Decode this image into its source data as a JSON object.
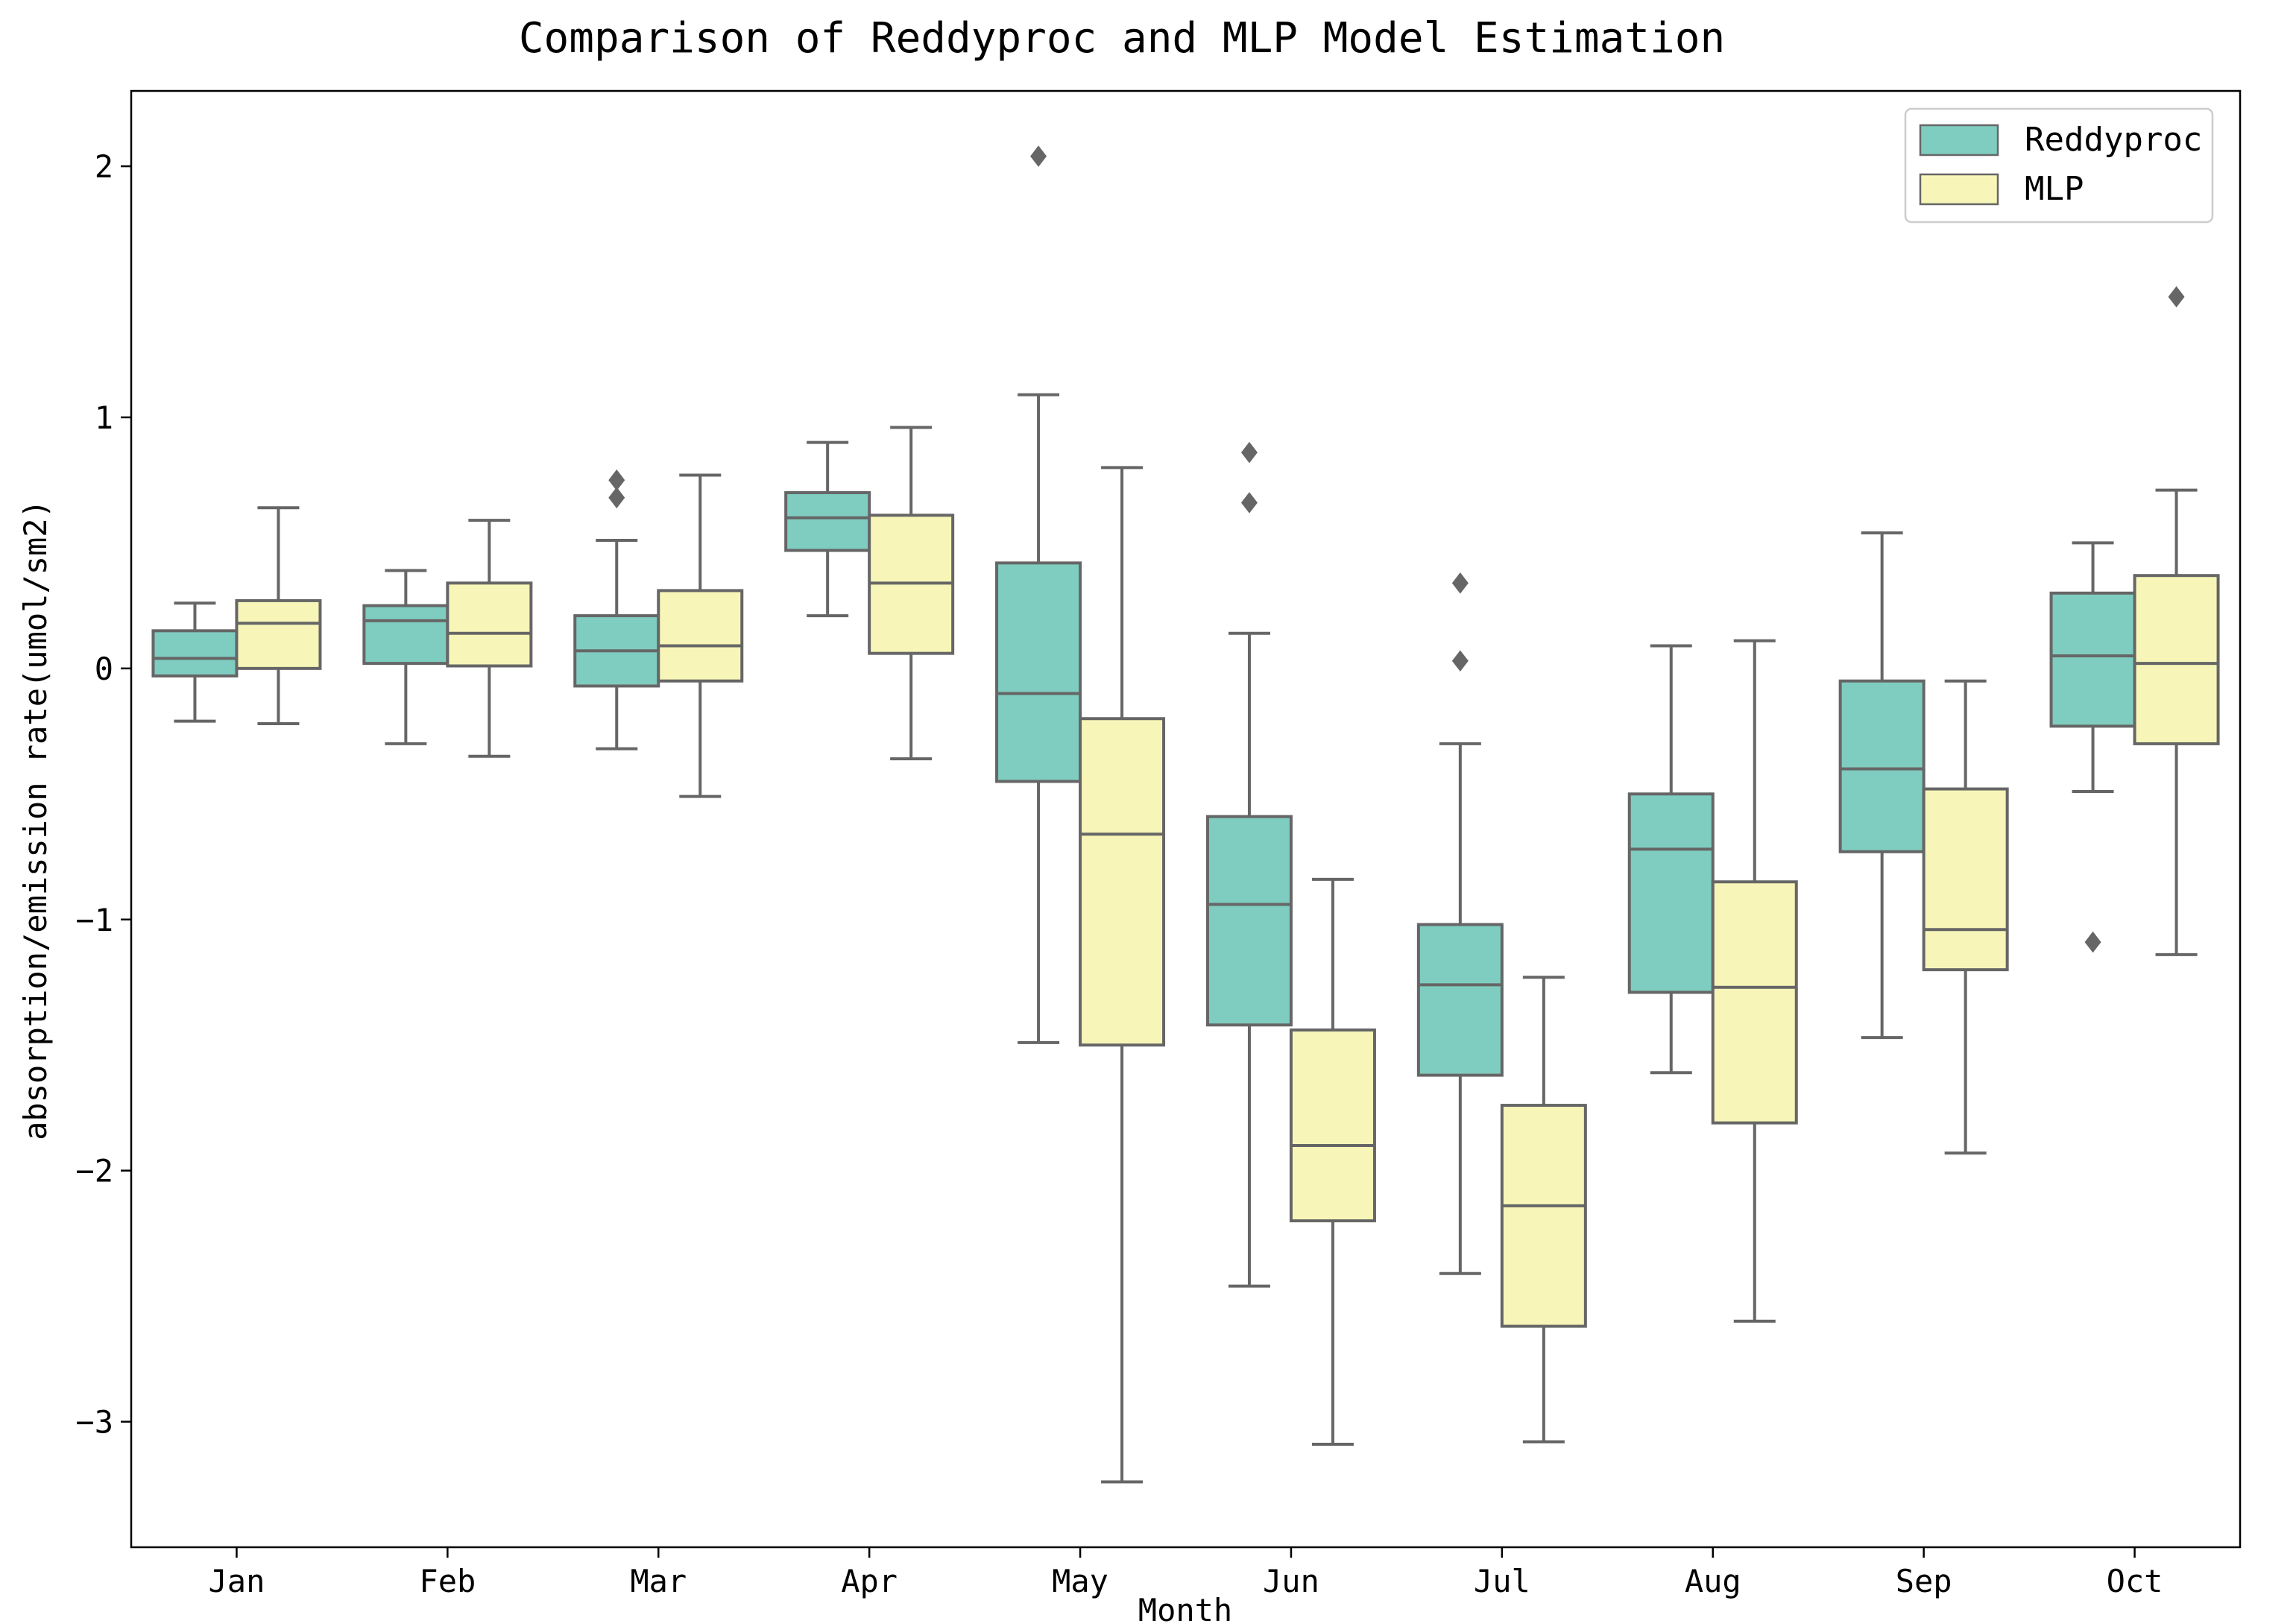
{
  "chart_data": {
    "type": "box",
    "title": "Comparison of Reddyproc and MLP Model Estimation",
    "xlabel": "Month",
    "ylabel": "absorption/emission rate(umol/sm2)",
    "categories": [
      "Jan",
      "Feb",
      "Mar",
      "Apr",
      "May",
      "Jun",
      "Jul",
      "Aug",
      "Sep",
      "Oct"
    ],
    "ylim": [
      -3.5,
      2.3
    ],
    "yticks": [
      -3,
      -2,
      -1,
      0,
      1,
      2
    ],
    "ytick_labels": [
      "−3",
      "−2",
      "−1",
      "0",
      "1",
      "2"
    ],
    "legend": {
      "position": "top-right",
      "entries": [
        "Reddyproc",
        "MLP"
      ]
    },
    "series": [
      {
        "name": "Reddyproc",
        "color": "#7fcdc0",
        "boxes": [
          {
            "min": -0.21,
            "q1": -0.03,
            "median": 0.04,
            "q3": 0.15,
            "max": 0.26,
            "outliers": []
          },
          {
            "min": -0.3,
            "q1": 0.02,
            "median": 0.19,
            "q3": 0.25,
            "max": 0.39,
            "outliers": []
          },
          {
            "min": -0.32,
            "q1": -0.07,
            "median": 0.07,
            "q3": 0.21,
            "max": 0.51,
            "outliers": [
              0.68,
              0.75
            ]
          },
          {
            "min": 0.21,
            "q1": 0.47,
            "median": 0.6,
            "q3": 0.7,
            "max": 0.9,
            "outliers": []
          },
          {
            "min": -1.49,
            "q1": -0.45,
            "median": -0.1,
            "q3": 0.42,
            "max": 1.09,
            "outliers": [
              2.04
            ]
          },
          {
            "min": -2.46,
            "q1": -1.42,
            "median": -0.94,
            "q3": -0.59,
            "max": 0.14,
            "outliers": [
              0.66,
              0.86
            ]
          },
          {
            "min": -2.41,
            "q1": -1.62,
            "median": -1.26,
            "q3": -1.02,
            "max": -0.3,
            "outliers": [
              0.03,
              0.34
            ]
          },
          {
            "min": -1.61,
            "q1": -1.29,
            "median": -0.72,
            "q3": -0.5,
            "max": 0.09,
            "outliers": []
          },
          {
            "min": -1.47,
            "q1": -0.73,
            "median": -0.4,
            "q3": -0.05,
            "max": 0.54,
            "outliers": []
          },
          {
            "min": -0.49,
            "q1": -0.23,
            "median": 0.05,
            "q3": 0.3,
            "max": 0.5,
            "outliers": [
              -1.09
            ]
          }
        ]
      },
      {
        "name": "MLP",
        "color": "#f7f6b8",
        "boxes": [
          {
            "min": -0.22,
            "q1": 0.0,
            "median": 0.18,
            "q3": 0.27,
            "max": 0.64,
            "outliers": []
          },
          {
            "min": -0.35,
            "q1": 0.01,
            "median": 0.14,
            "q3": 0.34,
            "max": 0.59,
            "outliers": []
          },
          {
            "min": -0.51,
            "q1": -0.05,
            "median": 0.09,
            "q3": 0.31,
            "max": 0.77,
            "outliers": []
          },
          {
            "min": -0.36,
            "q1": 0.06,
            "median": 0.34,
            "q3": 0.61,
            "max": 0.96,
            "outliers": []
          },
          {
            "min": -3.24,
            "q1": -1.5,
            "median": -0.66,
            "q3": -0.2,
            "max": 0.8,
            "outliers": []
          },
          {
            "min": -3.09,
            "q1": -2.2,
            "median": -1.9,
            "q3": -1.44,
            "max": -0.84,
            "outliers": []
          },
          {
            "min": -3.08,
            "q1": -2.62,
            "median": -2.14,
            "q3": -1.74,
            "max": -1.23,
            "outliers": []
          },
          {
            "min": -2.6,
            "q1": -1.81,
            "median": -1.27,
            "q3": -0.85,
            "max": 0.11,
            "outliers": []
          },
          {
            "min": -1.93,
            "q1": -1.2,
            "median": -1.04,
            "q3": -0.48,
            "max": -0.05,
            "outliers": []
          },
          {
            "min": -1.14,
            "q1": -0.3,
            "median": 0.02,
            "q3": 0.37,
            "max": 0.71,
            "outliers": [
              1.48
            ]
          }
        ]
      }
    ]
  }
}
